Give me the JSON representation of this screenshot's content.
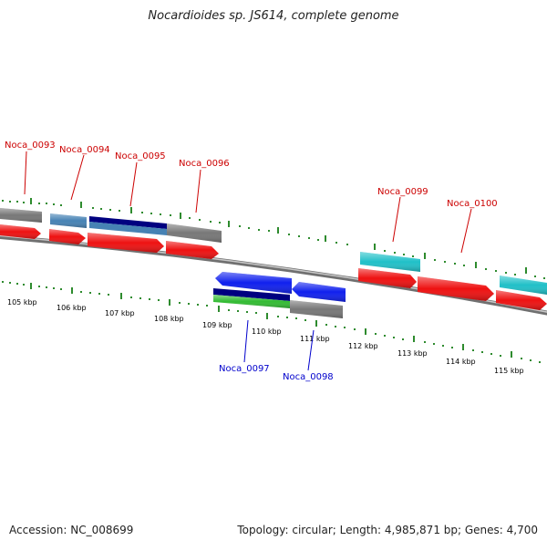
{
  "title": "Nocardioides sp. JS614, complete genome",
  "footer": {
    "accession": "Accession: NC_008699",
    "info": "Topology: circular; Length: 4,985,871 bp; Genes: 4,700"
  },
  "colors": {
    "backbone": "#8c8c8c",
    "tick": "#2e8b2e",
    "cds": "#ee1111",
    "gray_gene": "#777777",
    "steel_blue": "#4682b4",
    "navy": "#000080",
    "cyan": "#20c0c8",
    "blue": "#1020ee",
    "green": "#33bb33",
    "label_top": "#cc0000",
    "label_bottom": "#0000cc"
  },
  "scale_labels": [
    "105 kbp",
    "106 kbp",
    "107 kbp",
    "108 kbp",
    "109 kbp",
    "110 kbp",
    "111 kbp",
    "112 kbp",
    "113 kbp",
    "114 kbp",
    "115 kbp"
  ],
  "gene_labels": {
    "top": [
      "Noca_0093",
      "Noca_0094",
      "Noca_0095",
      "Noca_0096",
      "Noca_0099",
      "Noca_0100"
    ],
    "bottom": [
      "Noca_0097",
      "Noca_0098"
    ]
  }
}
